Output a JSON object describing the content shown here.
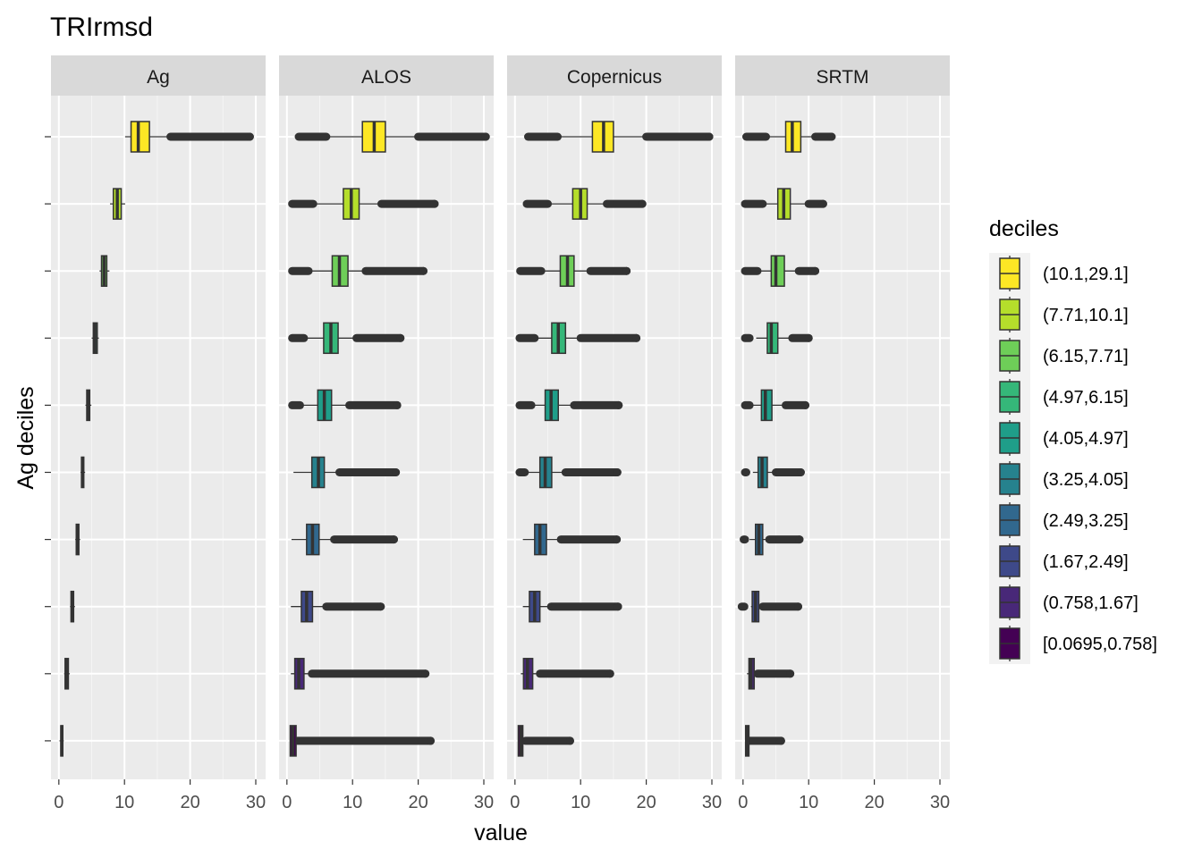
{
  "chart_data": {
    "type": "boxplot",
    "orientation": "horizontal",
    "title": "TRIrmsd",
    "xlabel": "value",
    "ylabel": "Ag deciles",
    "xlim": [
      -1.2,
      31.5
    ],
    "xticks": [
      0,
      10,
      20,
      30
    ],
    "xtick_labels": [
      "0",
      "10",
      "20",
      "30"
    ],
    "panels": [
      "Ag",
      "ALOS",
      "Copernicus",
      "SRTM"
    ],
    "legend": {
      "title": "deciles",
      "position": "right",
      "entries": [
        {
          "label": "(10.1,29.1]",
          "color": "#FDE725"
        },
        {
          "label": "(7.71,10.1]",
          "color": "#B5DE2B"
        },
        {
          "label": "(6.15,7.71]",
          "color": "#6ECE58"
        },
        {
          "label": "(4.97,6.15]",
          "color": "#35B779"
        },
        {
          "label": "(4.05,4.97]",
          "color": "#1F9E89"
        },
        {
          "label": "(3.25,4.05]",
          "color": "#26828E"
        },
        {
          "label": "(2.49,3.25]",
          "color": "#31688E"
        },
        {
          "label": "(1.67,2.49]",
          "color": "#3E4989"
        },
        {
          "label": "(0.758,1.67]",
          "color": "#482878"
        },
        {
          "label": "[0.0695,0.758]",
          "color": "#440154"
        }
      ]
    },
    "series": [
      {
        "panel": "Ag",
        "boxes": [
          {
            "decile": "(10.1,29.1]",
            "whisker_low": 10.1,
            "q1": 11.0,
            "median": 12.1,
            "q3": 13.8,
            "whisker_high": 17.0,
            "outlier_range": [
              17.0,
              29.1
            ]
          },
          {
            "decile": "(7.71,10.1]",
            "whisker_low": 7.8,
            "q1": 8.3,
            "median": 8.9,
            "q3": 9.5,
            "whisker_high": 10.1,
            "outlier_range": null
          },
          {
            "decile": "(6.15,7.71]",
            "whisker_low": 6.2,
            "q1": 6.5,
            "median": 6.9,
            "q3": 7.3,
            "whisker_high": 7.7,
            "outlier_range": null
          },
          {
            "decile": "(4.97,6.15]",
            "whisker_low": 5.0,
            "q1": 5.25,
            "median": 5.5,
            "q3": 5.85,
            "whisker_high": 6.1,
            "outlier_range": null
          },
          {
            "decile": "(4.05,4.97]",
            "whisker_low": 4.05,
            "q1": 4.25,
            "median": 4.45,
            "q3": 4.7,
            "whisker_high": 4.95,
            "outlier_range": null
          },
          {
            "decile": "(3.25,4.05]",
            "whisker_low": 3.3,
            "q1": 3.45,
            "median": 3.6,
            "q3": 3.8,
            "whisker_high": 4.0,
            "outlier_range": null
          },
          {
            "decile": "(2.49,3.25]",
            "whisker_low": 2.5,
            "q1": 2.65,
            "median": 2.85,
            "q3": 3.05,
            "whisker_high": 3.25,
            "outlier_range": null
          },
          {
            "decile": "(1.67,2.49]",
            "whisker_low": 1.7,
            "q1": 1.85,
            "median": 2.05,
            "q3": 2.25,
            "whisker_high": 2.45,
            "outlier_range": null
          },
          {
            "decile": "(0.758,1.67]",
            "whisker_low": 0.8,
            "q1": 0.95,
            "median": 1.2,
            "q3": 1.45,
            "whisker_high": 1.65,
            "outlier_range": null
          },
          {
            "decile": "[0.0695,0.758]",
            "whisker_low": 0.1,
            "q1": 0.3,
            "median": 0.45,
            "q3": 0.6,
            "whisker_high": 0.75,
            "outlier_range": null
          }
        ]
      },
      {
        "panel": "ALOS",
        "boxes": [
          {
            "decile": "(10.1,29.1]",
            "whisker_low": 6.0,
            "q1": 11.5,
            "median": 13.3,
            "q3": 15.0,
            "whisker_high": 20.0,
            "outlier_range": [
              20.0,
              30.3
            ],
            "low_outlier_range": [
              1.8,
              6.0
            ]
          },
          {
            "decile": "(7.71,10.1]",
            "whisker_low": 4.0,
            "q1": 8.6,
            "median": 9.8,
            "q3": 11.0,
            "whisker_high": 14.4,
            "outlier_range": [
              14.4,
              22.5
            ],
            "low_outlier_range": [
              0.8,
              4.0
            ]
          },
          {
            "decile": "(6.15,7.71]",
            "whisker_low": 3.3,
            "q1": 6.9,
            "median": 8.0,
            "q3": 9.3,
            "whisker_high": 12.0,
            "outlier_range": [
              12.0,
              20.8
            ],
            "low_outlier_range": [
              0.8,
              3.3
            ]
          },
          {
            "decile": "(4.97,6.15]",
            "whisker_low": 2.6,
            "q1": 5.6,
            "median": 6.7,
            "q3": 7.8,
            "whisker_high": 10.6,
            "outlier_range": [
              10.6,
              17.3
            ],
            "low_outlier_range": [
              0.8,
              2.6
            ]
          },
          {
            "decile": "(4.05,4.97]",
            "whisker_low": 2.0,
            "q1": 4.7,
            "median": 5.7,
            "q3": 6.8,
            "whisker_high": 9.5,
            "outlier_range": [
              9.5,
              16.8
            ],
            "low_outlier_range": [
              0.8,
              2.0
            ]
          },
          {
            "decile": "(3.25,4.05]",
            "whisker_low": 1.0,
            "q1": 3.8,
            "median": 4.8,
            "q3": 5.7,
            "whisker_high": 8.0,
            "outlier_range": [
              8.0,
              16.6
            ],
            "low_outlier_range": null
          },
          {
            "decile": "(2.49,3.25]",
            "whisker_low": 0.7,
            "q1": 3.0,
            "median": 3.9,
            "q3": 4.9,
            "whisker_high": 7.2,
            "outlier_range": [
              7.2,
              16.3
            ],
            "low_outlier_range": null
          },
          {
            "decile": "(1.67,2.49]",
            "whisker_low": 0.6,
            "q1": 2.2,
            "median": 3.0,
            "q3": 3.9,
            "whisker_high": 6.0,
            "outlier_range": [
              6.0,
              14.3
            ],
            "low_outlier_range": null
          },
          {
            "decile": "(0.758,1.67]",
            "whisker_low": 0.6,
            "q1": 1.2,
            "median": 1.8,
            "q3": 2.6,
            "whisker_high": 3.8,
            "outlier_range": [
              3.8,
              21.1
            ],
            "low_outlier_range": null
          },
          {
            "decile": "[0.0695,0.758]",
            "whisker_low": 0.5,
            "q1": 0.5,
            "median": 0.9,
            "q3": 1.4,
            "whisker_high": 1.6,
            "outlier_range": [
              1.6,
              21.9
            ],
            "low_outlier_range": null
          }
        ]
      },
      {
        "panel": "Copernicus",
        "boxes": [
          {
            "decile": "(10.1,29.1]",
            "whisker_low": 6.5,
            "q1": 11.8,
            "median": 13.5,
            "q3": 15.0,
            "whisker_high": 20.0,
            "outlier_range": [
              20.0,
              29.6
            ],
            "low_outlier_range": [
              2.0,
              6.5
            ]
          },
          {
            "decile": "(7.71,10.1]",
            "whisker_low": 5.0,
            "q1": 8.8,
            "median": 10.0,
            "q3": 11.0,
            "whisker_high": 14.0,
            "outlier_range": [
              14.0,
              19.4
            ],
            "low_outlier_range": [
              1.8,
              5.0
            ]
          },
          {
            "decile": "(6.15,7.71]",
            "whisker_low": 4.0,
            "q1": 6.9,
            "median": 8.0,
            "q3": 9.0,
            "whisker_high": 11.5,
            "outlier_range": [
              11.5,
              17.0
            ],
            "low_outlier_range": [
              0.8,
              4.0
            ]
          },
          {
            "decile": "(4.97,6.15]",
            "whisker_low": 3.0,
            "q1": 5.6,
            "median": 6.6,
            "q3": 7.7,
            "whisker_high": 10.0,
            "outlier_range": [
              10.0,
              18.5
            ],
            "low_outlier_range": [
              0.7,
              3.0
            ]
          },
          {
            "decile": "(4.05,4.97]",
            "whisker_low": 2.5,
            "q1": 4.6,
            "median": 5.5,
            "q3": 6.6,
            "whisker_high": 9.0,
            "outlier_range": [
              9.0,
              15.8
            ],
            "low_outlier_range": [
              0.7,
              2.5
            ]
          },
          {
            "decile": "(3.25,4.05]",
            "whisker_low": 1.5,
            "q1": 3.8,
            "median": 4.6,
            "q3": 5.6,
            "whisker_high": 7.7,
            "outlier_range": [
              7.7,
              15.6
            ],
            "low_outlier_range": [
              0.7,
              1.5
            ]
          },
          {
            "decile": "(2.49,3.25]",
            "whisker_low": 1.2,
            "q1": 3.0,
            "median": 3.8,
            "q3": 4.8,
            "whisker_high": 7.0,
            "outlier_range": [
              7.0,
              15.5
            ],
            "low_outlier_range": null
          },
          {
            "decile": "(1.67,2.49]",
            "whisker_low": 1.2,
            "q1": 2.2,
            "median": 3.0,
            "q3": 3.8,
            "whisker_high": 5.5,
            "outlier_range": [
              5.5,
              15.7
            ],
            "low_outlier_range": null
          },
          {
            "decile": "(0.758,1.67]",
            "whisker_low": 0.9,
            "q1": 1.3,
            "median": 1.9,
            "q3": 2.7,
            "whisker_high": 3.8,
            "outlier_range": [
              3.8,
              14.5
            ],
            "low_outlier_range": null
          },
          {
            "decile": "[0.0695,0.758]",
            "whisker_low": 0.5,
            "q1": 0.5,
            "median": 0.9,
            "q3": 1.2,
            "whisker_high": 1.6,
            "outlier_range": [
              1.6,
              8.4
            ],
            "low_outlier_range": null
          }
        ]
      },
      {
        "panel": "SRTM",
        "boxes": [
          {
            "decile": "(10.1,29.1]",
            "whisker_low": 3.5,
            "q1": 6.5,
            "median": 7.5,
            "q3": 8.8,
            "whisker_high": 11.0,
            "outlier_range": [
              11.0,
              13.5
            ],
            "low_outlier_range": [
              0.5,
              3.5
            ]
          },
          {
            "decile": "(7.71,10.1]",
            "whisker_low": 3.0,
            "q1": 5.3,
            "median": 6.2,
            "q3": 7.2,
            "whisker_high": 10.0,
            "outlier_range": [
              10.0,
              12.2
            ],
            "low_outlier_range": [
              0.3,
              3.0
            ]
          },
          {
            "decile": "(6.15,7.71]",
            "whisker_low": 2.2,
            "q1": 4.3,
            "median": 5.0,
            "q3": 6.3,
            "whisker_high": 8.5,
            "outlier_range": [
              8.5,
              11.0
            ],
            "low_outlier_range": [
              0.3,
              2.2
            ]
          },
          {
            "decile": "(4.97,6.15]",
            "whisker_low": 2.0,
            "q1": 3.7,
            "median": 4.3,
            "q3": 5.3,
            "whisker_high": 7.5,
            "outlier_range": [
              7.5,
              10.0
            ],
            "low_outlier_range": [
              0.3,
              1.0
            ]
          },
          {
            "decile": "(4.05,4.97]",
            "whisker_low": 1.5,
            "q1": 2.8,
            "median": 3.4,
            "q3": 4.4,
            "whisker_high": 6.5,
            "outlier_range": [
              6.5,
              9.5
            ],
            "low_outlier_range": [
              0.3,
              1.0
            ]
          },
          {
            "decile": "(3.25,4.05]",
            "whisker_low": 1.5,
            "q1": 2.3,
            "median": 2.9,
            "q3": 3.7,
            "whisker_high": 5.0,
            "outlier_range": [
              5.0,
              8.8
            ],
            "low_outlier_range": [
              0.3,
              0.5
            ]
          },
          {
            "decile": "(2.49,3.25]",
            "whisker_low": 1.0,
            "q1": 1.9,
            "median": 2.4,
            "q3": 3.0,
            "whisker_high": 4.0,
            "outlier_range": [
              4.0,
              8.6
            ],
            "low_outlier_range": [
              0.1,
              0.3
            ]
          },
          {
            "decile": "(1.67,2.49]",
            "whisker_low": 1.2,
            "q1": 1.4,
            "median": 1.9,
            "q3": 2.4,
            "whisker_high": 3.0,
            "outlier_range": [
              3.0,
              8.4
            ],
            "low_outlier_range": [
              -0.2,
              0.2
            ]
          },
          {
            "decile": "(0.758,1.67]",
            "whisker_low": 0.6,
            "q1": 0.9,
            "median": 1.2,
            "q3": 1.7,
            "whisker_high": 2.2,
            "outlier_range": [
              2.2,
              7.2
            ],
            "low_outlier_range": null
          },
          {
            "decile": "[0.0695,0.758]",
            "whisker_low": 0.4,
            "q1": 0.4,
            "median": 0.6,
            "q3": 0.9,
            "whisker_high": 1.0,
            "outlier_range": [
              1.0,
              5.8
            ],
            "low_outlier_range": null
          }
        ]
      }
    ]
  }
}
